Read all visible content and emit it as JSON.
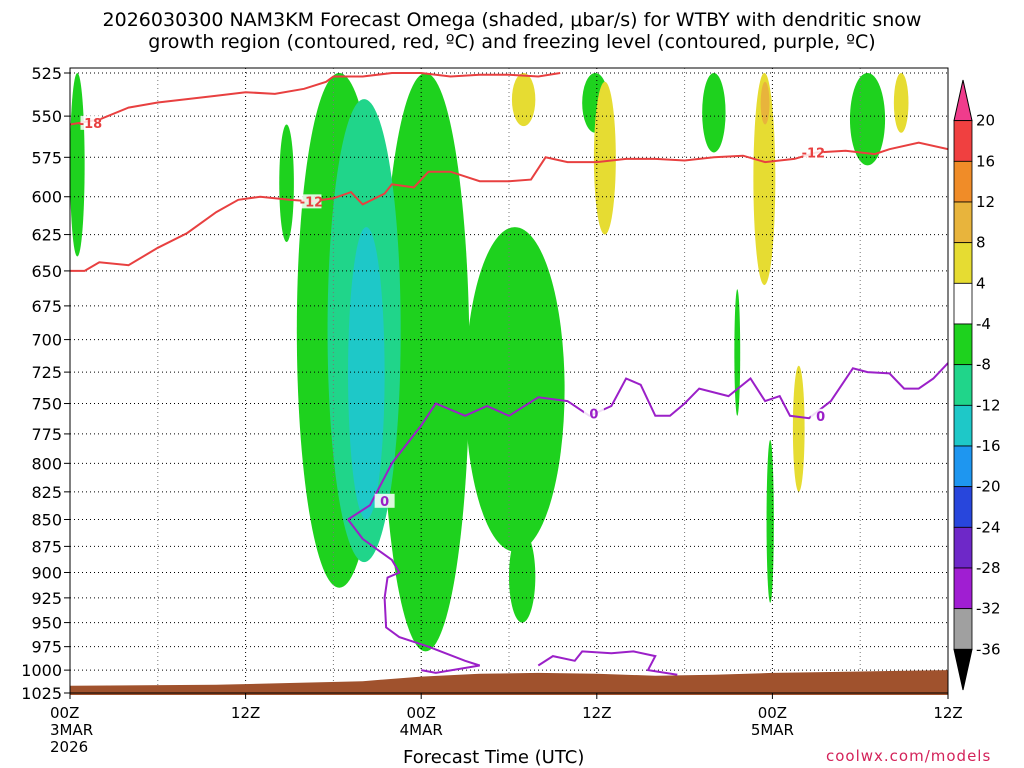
{
  "header": {
    "line1": "2026030300 NAM3KM Forecast Omega (shaded, μbar/s) for WTBY with dendritic snow",
    "line2": "growth region (contoured, red, ºC) and freezing level (contoured, purple, ºC)"
  },
  "footer": {
    "xlabel": "Forecast Time (UTC)",
    "credit": "coolwx.com/models"
  },
  "chart_data": {
    "type": "heatmap",
    "title": "2026030300 NAM3KM Forecast Omega (shaded, μbar/s) for WTBY with dendritic snow growth region (contoured, red, ºC) and freezing level (contoured, purple, ºC)",
    "xlabel": "Forecast Time (UTC)",
    "ylabel": "",
    "y_scale": "log-pressure (inverted)",
    "ylim": [
      1025,
      525
    ],
    "xlim_hours": [
      0,
      60
    ],
    "grid": true,
    "y_ticks": [
      525,
      550,
      575,
      600,
      625,
      650,
      675,
      700,
      725,
      750,
      775,
      800,
      825,
      850,
      875,
      900,
      925,
      950,
      975,
      1000,
      1025
    ],
    "x_ticks": [
      {
        "hour": 0,
        "labels": [
          "00Z",
          "3MAR",
          "2026"
        ]
      },
      {
        "hour": 12,
        "labels": [
          "12Z"
        ]
      },
      {
        "hour": 24,
        "labels": [
          "00Z",
          "4MAR"
        ]
      },
      {
        "hour": 36,
        "labels": [
          "12Z"
        ]
      },
      {
        "hour": 48,
        "labels": [
          "00Z",
          "5MAR"
        ]
      },
      {
        "hour": 60,
        "labels": [
          "12Z"
        ]
      }
    ],
    "colorbar": {
      "labels": [
        "20",
        "16",
        "12",
        "8",
        "4",
        "-4",
        "-8",
        "-12",
        "-16",
        "-20",
        "-24",
        "-28",
        "-32",
        "-36"
      ],
      "colors": [
        "#f03c8c",
        "#f04040",
        "#f08c28",
        "#e8b43c",
        "#e6dc32",
        "#ffffff",
        "#1ed21e",
        "#20d58a",
        "#1ec8c8",
        "#1e96f0",
        "#2846dc",
        "#6e28c8",
        "#a01ed2",
        "#a0a0a0",
        "#000000"
      ]
    },
    "shaded_regions": [
      {
        "value_range": [
          -8,
          -4
        ],
        "color": "#1ed21e",
        "hours": [
          0,
          1
        ],
        "pressure": [
          525,
          640
        ]
      },
      {
        "value_range": [
          -8,
          -4
        ],
        "color": "#1ed21e",
        "hours": [
          14.3,
          15.3
        ],
        "pressure": [
          555,
          630
        ]
      },
      {
        "value_range": [
          -8,
          -4
        ],
        "color": "#1ed21e",
        "hours": [
          15.5,
          21.3
        ],
        "pressure": [
          525,
          915
        ]
      },
      {
        "value_range": [
          -8,
          -4
        ],
        "color": "#1ed21e",
        "hours": [
          21.3,
          27.3
        ],
        "pressure": [
          525,
          980
        ]
      },
      {
        "value_range": [
          -8,
          -4
        ],
        "color": "#1ed21e",
        "hours": [
          27,
          33.8
        ],
        "pressure": [
          620,
          880
        ]
      },
      {
        "value_range": [
          -8,
          -4
        ],
        "color": "#1ed21e",
        "hours": [
          30,
          31.8
        ],
        "pressure": [
          860,
          950
        ]
      },
      {
        "value_range": [
          -8,
          -4
        ],
        "color": "#1ed21e",
        "hours": [
          35,
          36.8
        ],
        "pressure": [
          525,
          560
        ]
      },
      {
        "value_range": [
          -8,
          -4
        ],
        "color": "#1ed21e",
        "hours": [
          43.2,
          44.8
        ],
        "pressure": [
          525,
          572
        ]
      },
      {
        "value_range": [
          -8,
          -4
        ],
        "color": "#1ed21e",
        "hours": [
          45.4,
          45.8
        ],
        "pressure": [
          663,
          760
        ]
      },
      {
        "value_range": [
          -8,
          -4
        ],
        "color": "#1ed21e",
        "hours": [
          47.6,
          48.1
        ],
        "pressure": [
          780,
          930
        ]
      },
      {
        "value_range": [
          -8,
          -4
        ],
        "color": "#1ed21e",
        "hours": [
          53.3,
          55.7
        ],
        "pressure": [
          525,
          580
        ]
      },
      {
        "value_range": [
          -12,
          -8
        ],
        "color": "#20d58a",
        "hours": [
          17.6,
          22.6
        ],
        "pressure": [
          540,
          890
        ]
      },
      {
        "value_range": [
          -16,
          -12
        ],
        "color": "#1ec8c8",
        "hours": [
          19,
          21.5
        ],
        "pressure": [
          620,
          850
        ]
      },
      {
        "value_range": [
          4,
          8
        ],
        "color": "#e6dc32",
        "hours": [
          30.2,
          31.8
        ],
        "pressure": [
          525,
          556
        ]
      },
      {
        "value_range": [
          4,
          8
        ],
        "color": "#e6dc32",
        "hours": [
          35.8,
          37.3
        ],
        "pressure": [
          530,
          625
        ]
      },
      {
        "value_range": [
          4,
          8
        ],
        "color": "#e6dc32",
        "hours": [
          46.7,
          48.2
        ],
        "pressure": [
          525,
          660
        ]
      },
      {
        "value_range": [
          4,
          8
        ],
        "color": "#e6dc32",
        "hours": [
          49.4,
          50.2
        ],
        "pressure": [
          720,
          825
        ]
      },
      {
        "value_range": [
          4,
          8
        ],
        "color": "#e6dc32",
        "hours": [
          56.3,
          57.3
        ],
        "pressure": [
          525,
          560
        ]
      },
      {
        "value_range": [
          8,
          12
        ],
        "color": "#e8b43c",
        "hours": [
          47.2,
          47.8
        ],
        "pressure": [
          530,
          555
        ]
      }
    ],
    "series": [
      {
        "name": "-18",
        "color": "#e84040",
        "label_value": "-18",
        "points": [
          [
            0,
            555
          ],
          [
            2,
            552
          ],
          [
            4,
            545
          ],
          [
            6,
            542
          ],
          [
            8,
            540
          ],
          [
            10,
            538
          ],
          [
            12,
            536
          ],
          [
            14,
            537
          ],
          [
            16,
            534
          ],
          [
            17.5,
            530
          ],
          [
            18,
            527
          ],
          [
            20,
            527
          ],
          [
            22,
            525
          ],
          [
            24,
            525
          ],
          [
            26,
            527
          ],
          [
            28,
            526
          ],
          [
            30,
            526
          ],
          [
            32,
            527
          ],
          [
            33.5,
            525
          ]
        ]
      },
      {
        "name": "-12",
        "color": "#e84040",
        "label_value": "-12",
        "points": [
          [
            0,
            650
          ],
          [
            1,
            650
          ],
          [
            2,
            644
          ],
          [
            4,
            646
          ],
          [
            6,
            634
          ],
          [
            8,
            624
          ],
          [
            10,
            610
          ],
          [
            11.5,
            602
          ],
          [
            13,
            600
          ],
          [
            15,
            602
          ],
          [
            16.5,
            603
          ],
          [
            18,
            601
          ],
          [
            19.2,
            597
          ],
          [
            20,
            605
          ],
          [
            21.5,
            598
          ],
          [
            22,
            592
          ],
          [
            23.5,
            594
          ],
          [
            24.5,
            584
          ],
          [
            26,
            584
          ],
          [
            28,
            590
          ],
          [
            30,
            590
          ],
          [
            31.5,
            589
          ],
          [
            32.5,
            575
          ],
          [
            34,
            578
          ],
          [
            36,
            578
          ],
          [
            38,
            576
          ],
          [
            40,
            576
          ],
          [
            42,
            577
          ],
          [
            44,
            575
          ],
          [
            46,
            574
          ],
          [
            47.5,
            578
          ],
          [
            49.5,
            576
          ],
          [
            51,
            572
          ],
          [
            53,
            571
          ],
          [
            55,
            573
          ],
          [
            56,
            570
          ],
          [
            58,
            566
          ],
          [
            60,
            570
          ]
        ]
      },
      {
        "name": "0",
        "color": "#9b20c8",
        "label_value": "0",
        "points": [
          [
            19,
            850
          ],
          [
            20.5,
            837
          ],
          [
            22,
            800
          ],
          [
            24,
            768
          ],
          [
            25,
            750
          ],
          [
            27,
            760
          ],
          [
            28.5,
            752
          ],
          [
            30,
            760
          ],
          [
            32,
            745
          ],
          [
            34,
            748
          ],
          [
            35.5,
            760
          ],
          [
            37,
            752
          ],
          [
            38,
            730
          ],
          [
            39,
            735
          ],
          [
            40,
            760
          ],
          [
            41,
            760
          ],
          [
            42,
            750
          ],
          [
            43,
            738
          ],
          [
            45,
            744
          ],
          [
            46.5,
            730
          ],
          [
            47.5,
            748
          ],
          [
            48.5,
            744
          ],
          [
            49.2,
            760
          ],
          [
            50.5,
            762
          ],
          [
            52,
            748
          ],
          [
            53.5,
            722
          ],
          [
            54.5,
            725
          ],
          [
            56,
            726
          ],
          [
            57,
            738
          ],
          [
            58,
            738
          ],
          [
            59,
            730
          ],
          [
            60,
            718
          ]
        ]
      }
    ]
  }
}
